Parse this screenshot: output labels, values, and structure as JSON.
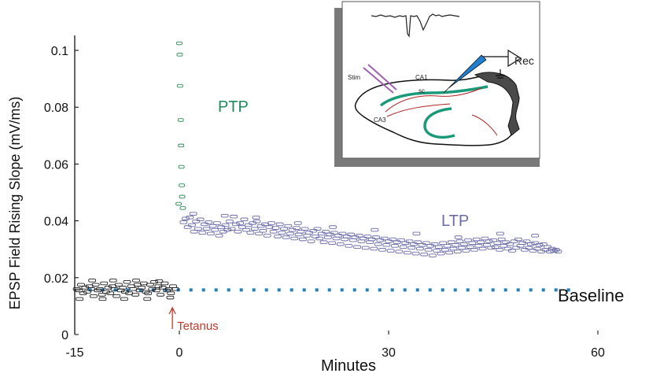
{
  "chart_data": {
    "type": "scatter",
    "xlabel": "Minutes",
    "ylabel": "EPSP Field Rising Slope (mV/ms)",
    "xlim": [
      -15,
      60
    ],
    "ylim": [
      0,
      0.1
    ],
    "xticks": [
      -15,
      0,
      30,
      60
    ],
    "yticks": [
      0,
      0.02,
      0.04,
      0.06,
      0.08,
      0.1
    ],
    "xtick_labels": [
      "-15",
      "0",
      "30",
      "60"
    ],
    "ytick_labels": [
      "0",
      "0.02",
      "0.04",
      "0.06",
      "0.08",
      "0.1"
    ],
    "grid": false,
    "legend": "none",
    "colors": {
      "pre": "#222222",
      "ptp": "#2e8b57",
      "ltp": "#6b6ba8",
      "baseline": "#1f7fc0",
      "tetanus": "#c0392b",
      "ptp_label": "#1f8a5a",
      "ltp_label": "#6b6ba8"
    },
    "series": [
      {
        "role": "pre-tetanus",
        "points": [
          [
            -14.7,
            0.016
          ],
          [
            -14.4,
            0.0155
          ],
          [
            -14.1,
            0.0175
          ],
          [
            -13.8,
            0.0145
          ],
          [
            -13.5,
            0.0165
          ],
          [
            -13.2,
            0.015
          ],
          [
            -12.9,
            0.017
          ],
          [
            -12.6,
            0.016
          ],
          [
            -12.3,
            0.0135
          ],
          [
            -12.0,
            0.0175
          ],
          [
            -11.7,
            0.0155
          ],
          [
            -11.4,
            0.016
          ],
          [
            -11.1,
            0.014
          ],
          [
            -10.8,
            0.018
          ],
          [
            -10.5,
            0.015
          ],
          [
            -10.2,
            0.0165
          ],
          [
            -9.9,
            0.0145
          ],
          [
            -9.6,
            0.017
          ],
          [
            -9.3,
            0.016
          ],
          [
            -9.0,
            0.0135
          ],
          [
            -8.7,
            0.0175
          ],
          [
            -8.4,
            0.0155
          ],
          [
            -8.1,
            0.0165
          ],
          [
            -7.8,
            0.015
          ],
          [
            -7.5,
            0.0185
          ],
          [
            -7.2,
            0.0145
          ],
          [
            -6.9,
            0.017
          ],
          [
            -6.6,
            0.016
          ],
          [
            -6.3,
            0.014
          ],
          [
            -6.0,
            0.0175
          ],
          [
            -5.7,
            0.0155
          ],
          [
            -5.4,
            0.0165
          ],
          [
            -5.1,
            0.018
          ],
          [
            -4.8,
            0.015
          ],
          [
            -4.5,
            0.0145
          ],
          [
            -4.2,
            0.0175
          ],
          [
            -3.9,
            0.016
          ],
          [
            -3.6,
            0.0185
          ],
          [
            -3.3,
            0.0155
          ],
          [
            -3.0,
            0.017
          ],
          [
            -2.7,
            0.014
          ],
          [
            -2.4,
            0.0165
          ],
          [
            -2.1,
            0.018
          ],
          [
            -1.8,
            0.0155
          ],
          [
            -1.5,
            0.016
          ],
          [
            -1.2,
            0.0145
          ],
          [
            -0.9,
            0.017
          ],
          [
            -0.6,
            0.016
          ],
          [
            -14.3,
            0.0125
          ],
          [
            -12.5,
            0.019
          ],
          [
            -11.0,
            0.0125
          ],
          [
            -9.5,
            0.019
          ],
          [
            -7.9,
            0.0125
          ],
          [
            -6.2,
            0.019
          ],
          [
            -4.6,
            0.0125
          ],
          [
            -2.9,
            0.0188
          ],
          [
            -1.3,
            0.013
          ]
        ]
      },
      {
        "role": "PTP",
        "points": [
          [
            0.0,
            0.1025
          ],
          [
            0.05,
            0.0985
          ],
          [
            0.1,
            0.0875
          ],
          [
            0.2,
            0.0755
          ],
          [
            0.25,
            0.0665
          ],
          [
            0.3,
            0.059
          ],
          [
            0.35,
            0.0525
          ],
          [
            0.4,
            0.0485
          ],
          [
            -0.1,
            0.046
          ],
          [
            0.5,
            0.0445
          ]
        ]
      },
      {
        "role": "LTP",
        "points": [
          [
            0.6,
            0.0395
          ],
          [
            0.9,
            0.0408
          ],
          [
            1.2,
            0.0378
          ],
          [
            1.5,
            0.0412
          ],
          [
            1.8,
            0.0385
          ],
          [
            2.1,
            0.0362
          ],
          [
            2.4,
            0.0398
          ],
          [
            2.7,
            0.0372
          ],
          [
            3.0,
            0.0405
          ],
          [
            3.3,
            0.0358
          ],
          [
            3.6,
            0.0388
          ],
          [
            3.9,
            0.0372
          ],
          [
            4.2,
            0.0395
          ],
          [
            4.5,
            0.0355
          ],
          [
            4.8,
            0.0382
          ],
          [
            5.1,
            0.0368
          ],
          [
            5.4,
            0.0392
          ],
          [
            5.7,
            0.0348
          ],
          [
            6.0,
            0.0378
          ],
          [
            6.3,
            0.0362
          ],
          [
            6.6,
            0.0385
          ],
          [
            6.9,
            0.0368
          ],
          [
            7.2,
            0.0398
          ],
          [
            7.5,
            0.0372
          ],
          [
            7.8,
            0.0415
          ],
          [
            8.1,
            0.0388
          ],
          [
            8.4,
            0.0362
          ],
          [
            8.7,
            0.0392
          ],
          [
            9.0,
            0.0378
          ],
          [
            9.3,
            0.0405
          ],
          [
            9.6,
            0.0368
          ],
          [
            9.9,
            0.0385
          ],
          [
            10.2,
            0.0358
          ],
          [
            10.5,
            0.0392
          ],
          [
            10.8,
            0.0372
          ],
          [
            11.1,
            0.0398
          ],
          [
            11.4,
            0.0355
          ],
          [
            11.7,
            0.0382
          ],
          [
            12.0,
            0.0365
          ],
          [
            12.3,
            0.0388
          ],
          [
            12.6,
            0.0348
          ],
          [
            12.9,
            0.0378
          ],
          [
            13.2,
            0.0392
          ],
          [
            13.5,
            0.0362
          ],
          [
            13.8,
            0.0375
          ],
          [
            14.1,
            0.0345
          ],
          [
            14.4,
            0.0388
          ],
          [
            14.7,
            0.0358
          ],
          [
            15.0,
            0.0372
          ],
          [
            15.3,
            0.0342
          ],
          [
            15.6,
            0.0382
          ],
          [
            15.9,
            0.0355
          ],
          [
            16.2,
            0.0368
          ],
          [
            16.5,
            0.0338
          ],
          [
            16.8,
            0.0375
          ],
          [
            17.1,
            0.0352
          ],
          [
            17.4,
            0.0362
          ],
          [
            17.7,
            0.0335
          ],
          [
            18.0,
            0.0372
          ],
          [
            18.3,
            0.0348
          ],
          [
            18.6,
            0.0358
          ],
          [
            18.9,
            0.0328
          ],
          [
            19.2,
            0.0365
          ],
          [
            19.5,
            0.0345
          ],
          [
            19.8,
            0.0372
          ],
          [
            20.1,
            0.0338
          ],
          [
            20.4,
            0.0355
          ],
          [
            20.7,
            0.0325
          ],
          [
            21.0,
            0.0362
          ],
          [
            21.3,
            0.0342
          ],
          [
            21.6,
            0.0352
          ],
          [
            21.9,
            0.0322
          ],
          [
            22.2,
            0.0358
          ],
          [
            22.5,
            0.0338
          ],
          [
            22.8,
            0.0348
          ],
          [
            23.1,
            0.0318
          ],
          [
            23.4,
            0.0355
          ],
          [
            23.7,
            0.0335
          ],
          [
            24.0,
            0.0345
          ],
          [
            24.3,
            0.0312
          ],
          [
            24.6,
            0.0352
          ],
          [
            24.9,
            0.0332
          ],
          [
            25.2,
            0.0342
          ],
          [
            25.5,
            0.0308
          ],
          [
            25.8,
            0.0348
          ],
          [
            26.1,
            0.0328
          ],
          [
            26.4,
            0.0338
          ],
          [
            26.7,
            0.0305
          ],
          [
            27.0,
            0.0345
          ],
          [
            27.3,
            0.0325
          ],
          [
            27.6,
            0.0335
          ],
          [
            27.9,
            0.0302
          ],
          [
            28.2,
            0.0342
          ],
          [
            28.5,
            0.0318
          ],
          [
            28.8,
            0.0332
          ],
          [
            29.1,
            0.0298
          ],
          [
            29.4,
            0.0338
          ],
          [
            29.7,
            0.0315
          ],
          [
            30.0,
            0.0328
          ],
          [
            30.3,
            0.0295
          ],
          [
            30.6,
            0.0335
          ],
          [
            30.9,
            0.0312
          ],
          [
            31.2,
            0.0325
          ],
          [
            31.5,
            0.0292
          ],
          [
            31.8,
            0.0332
          ],
          [
            32.1,
            0.0308
          ],
          [
            32.4,
            0.0322
          ],
          [
            32.7,
            0.0288
          ],
          [
            33.0,
            0.0328
          ],
          [
            33.3,
            0.0305
          ],
          [
            33.6,
            0.0318
          ],
          [
            33.9,
            0.0285
          ],
          [
            34.2,
            0.0325
          ],
          [
            34.5,
            0.0302
          ],
          [
            34.8,
            0.0315
          ],
          [
            35.1,
            0.0282
          ],
          [
            35.4,
            0.0322
          ],
          [
            35.7,
            0.0298
          ],
          [
            36.0,
            0.0312
          ],
          [
            36.3,
            0.0278
          ],
          [
            36.6,
            0.0318
          ],
          [
            36.9,
            0.0295
          ],
          [
            37.2,
            0.0308
          ],
          [
            37.5,
            0.0285
          ],
          [
            37.8,
            0.0322
          ],
          [
            38.1,
            0.0298
          ],
          [
            38.4,
            0.0312
          ],
          [
            38.7,
            0.0288
          ],
          [
            39.0,
            0.0325
          ],
          [
            39.3,
            0.0302
          ],
          [
            39.6,
            0.0315
          ],
          [
            39.9,
            0.0292
          ],
          [
            40.2,
            0.0328
          ],
          [
            40.5,
            0.0305
          ],
          [
            40.8,
            0.0318
          ],
          [
            41.1,
            0.0295
          ],
          [
            41.4,
            0.0332
          ],
          [
            41.7,
            0.0308
          ],
          [
            42.0,
            0.0322
          ],
          [
            42.3,
            0.0298
          ],
          [
            42.6,
            0.0335
          ],
          [
            42.9,
            0.0312
          ],
          [
            43.2,
            0.0325
          ],
          [
            43.5,
            0.0302
          ],
          [
            43.8,
            0.0338
          ],
          [
            44.1,
            0.0315
          ],
          [
            44.4,
            0.0328
          ],
          [
            44.7,
            0.0305
          ],
          [
            45.0,
            0.0332
          ],
          [
            45.3,
            0.0308
          ],
          [
            45.6,
            0.0322
          ],
          [
            45.9,
            0.0298
          ],
          [
            46.2,
            0.0335
          ],
          [
            46.5,
            0.0312
          ],
          [
            46.8,
            0.0325
          ],
          [
            47.1,
            0.0302
          ],
          [
            47.4,
            0.0318
          ],
          [
            47.7,
            0.0295
          ],
          [
            48.0,
            0.0328
          ],
          [
            48.3,
            0.0305
          ],
          [
            48.6,
            0.0335
          ],
          [
            48.9,
            0.0312
          ],
          [
            49.2,
            0.0322
          ],
          [
            49.5,
            0.0298
          ],
          [
            49.8,
            0.0328
          ],
          [
            50.1,
            0.0305
          ],
          [
            50.4,
            0.0318
          ],
          [
            50.7,
            0.0295
          ],
          [
            51.0,
            0.0322
          ],
          [
            51.3,
            0.0302
          ],
          [
            51.6,
            0.0315
          ],
          [
            51.9,
            0.0292
          ],
          [
            52.2,
            0.0318
          ],
          [
            52.5,
            0.0298
          ],
          [
            52.8,
            0.0308
          ],
          [
            53.1,
            0.0292
          ],
          [
            53.4,
            0.0302
          ],
          [
            53.7,
            0.0295
          ],
          [
            54.0,
            0.0298
          ],
          [
            54.3,
            0.0292
          ],
          [
            2.0,
            0.0425
          ],
          [
            6.5,
            0.0418
          ],
          [
            11.0,
            0.0412
          ],
          [
            17.0,
            0.0392
          ],
          [
            22.0,
            0.0378
          ],
          [
            28.0,
            0.0368
          ],
          [
            34.0,
            0.0355
          ],
          [
            40.0,
            0.0342
          ],
          [
            46.0,
            0.0355
          ],
          [
            51.0,
            0.0348
          ]
        ]
      }
    ],
    "baseline": {
      "y": 0.0157,
      "x_start": -13.0,
      "x_end": 57.0
    },
    "annotations": {
      "ptp": "PTP",
      "ltp": "LTP",
      "baseline": "Baseline",
      "tetanus": "Tetanus",
      "tetanus_x": -1.0
    },
    "inset": {
      "labels": {
        "stim": "Stim",
        "ca1": "CA1",
        "sc": "sc",
        "ca3": "CA3",
        "rec": "Rec"
      }
    }
  }
}
